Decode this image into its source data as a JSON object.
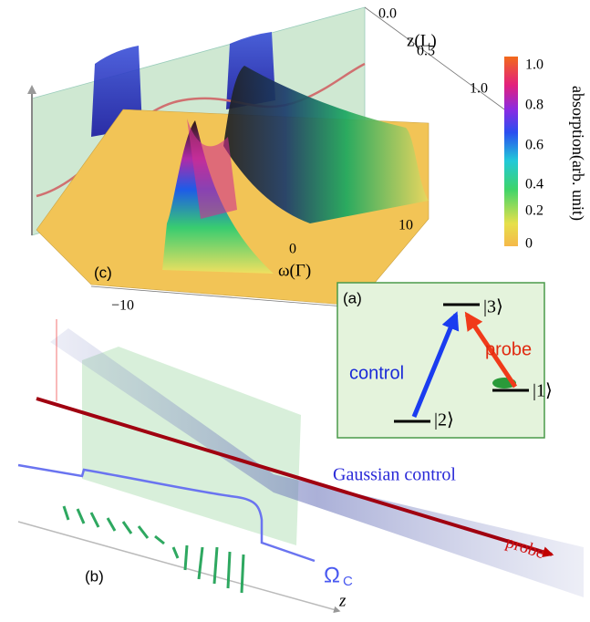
{
  "panel_c": {
    "label": "(c)",
    "z_axis": {
      "title": "z(L)",
      "ticks": [
        "0.0",
        "0.5",
        "1.0"
      ]
    },
    "omega_axis": {
      "title": "ω(Γ)",
      "ticks": [
        "−10",
        "0",
        "10"
      ]
    },
    "colorbar": {
      "title": "absorption(arb. unit)",
      "ticks": [
        "1.0",
        "0.8",
        "0.6",
        "0.4",
        "0.2",
        "0"
      ]
    }
  },
  "panel_a": {
    "label": "(a)",
    "levels": [
      "|3⟩",
      "|1⟩",
      "|2⟩"
    ],
    "arrows": [
      "control",
      "probe"
    ]
  },
  "panel_b": {
    "label": "(b)",
    "beam_labels": [
      "Gaussian control",
      "probe"
    ],
    "control_field": {
      "symbol": "Ω",
      "subscript": "C"
    },
    "axis": "z"
  }
}
